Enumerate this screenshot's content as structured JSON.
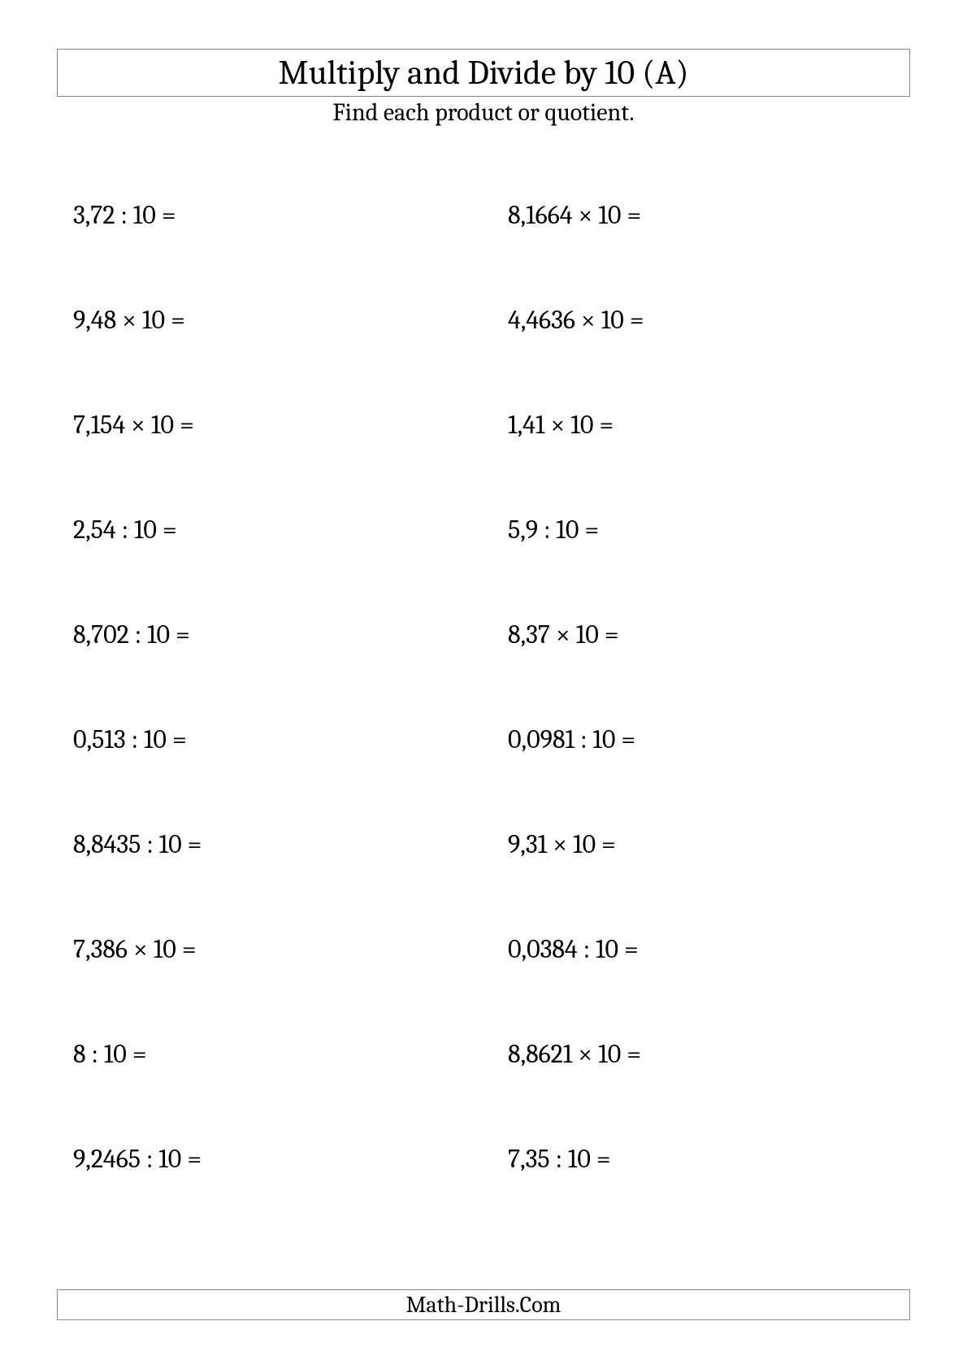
{
  "title": "Multiply and Divide by 10 (A)",
  "subtitle": "Find each product or quotient.",
  "footer": "Math-Drills.Com",
  "problems": {
    "type": "worksheet",
    "columns": 2,
    "rows": 10,
    "font_size": 32,
    "text_color": "#000000",
    "background_color": "#ffffff",
    "border_color": "#888888",
    "left": [
      "3,72 : 10 =",
      "9,48 × 10 =",
      "7,154 × 10 =",
      "2,54 : 10 =",
      "8,702 : 10 =",
      "0,513 : 10 =",
      "8,8435 : 10 =",
      "7,386 × 10 =",
      "8 : 10 =",
      "9,2465 : 10 ="
    ],
    "right": [
      "8,1664 × 10 =",
      "4,4636 × 10 =",
      "1,41 × 10 =",
      "5,9 : 10 =",
      "8,37 × 10 =",
      "0,0981 : 10 =",
      "9,31 × 10 =",
      "0,0384 : 10 =",
      "8,8621 × 10 =",
      "7,35 : 10 ="
    ]
  }
}
